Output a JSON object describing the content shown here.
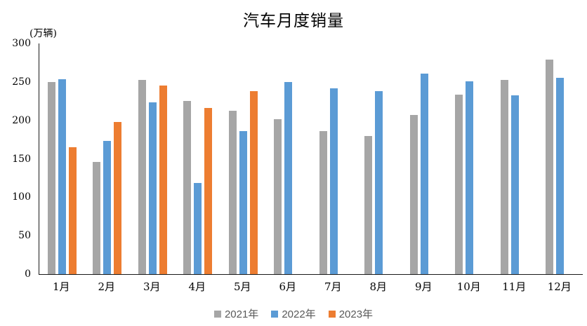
{
  "title": "汽车月度销量",
  "y_axis_unit": "(万辆)",
  "colors": {
    "series_2021": "#A6A6A6",
    "series_2022": "#5B9BD5",
    "series_2023": "#ED7D31",
    "axis_line": "#1a1a1a",
    "legend_text": "#595959"
  },
  "chart_data": {
    "type": "bar",
    "title": "汽车月度销量",
    "ylabel": "(万辆)",
    "xlabel": "",
    "categories": [
      "1月",
      "2月",
      "3月",
      "4月",
      "5月",
      "6月",
      "7月",
      "8月",
      "9月",
      "10月",
      "11月",
      "12月"
    ],
    "series": [
      {
        "name": "2021年",
        "color": "#A6A6A6",
        "values": [
          250.3,
          145.5,
          252.6,
          225.2,
          212.8,
          201.5,
          186.4,
          179.9,
          206.7,
          233.3,
          252.2,
          278.6
        ]
      },
      {
        "name": "2022年",
        "color": "#5B9BD5",
        "values": [
          253.1,
          173.7,
          223.4,
          118.1,
          186.2,
          250.2,
          242.0,
          238.3,
          261.0,
          250.5,
          232.8,
          255.6
        ]
      },
      {
        "name": "2023年",
        "color": "#ED7D31",
        "values": [
          164.9,
          197.6,
          245.1,
          215.9,
          238.2,
          null,
          null,
          null,
          null,
          null,
          null,
          null
        ]
      }
    ],
    "ylim": [
      0,
      300
    ],
    "yticks": [
      0,
      50,
      100,
      150,
      200,
      250,
      300
    ],
    "grid": false,
    "legend_position": "bottom"
  }
}
